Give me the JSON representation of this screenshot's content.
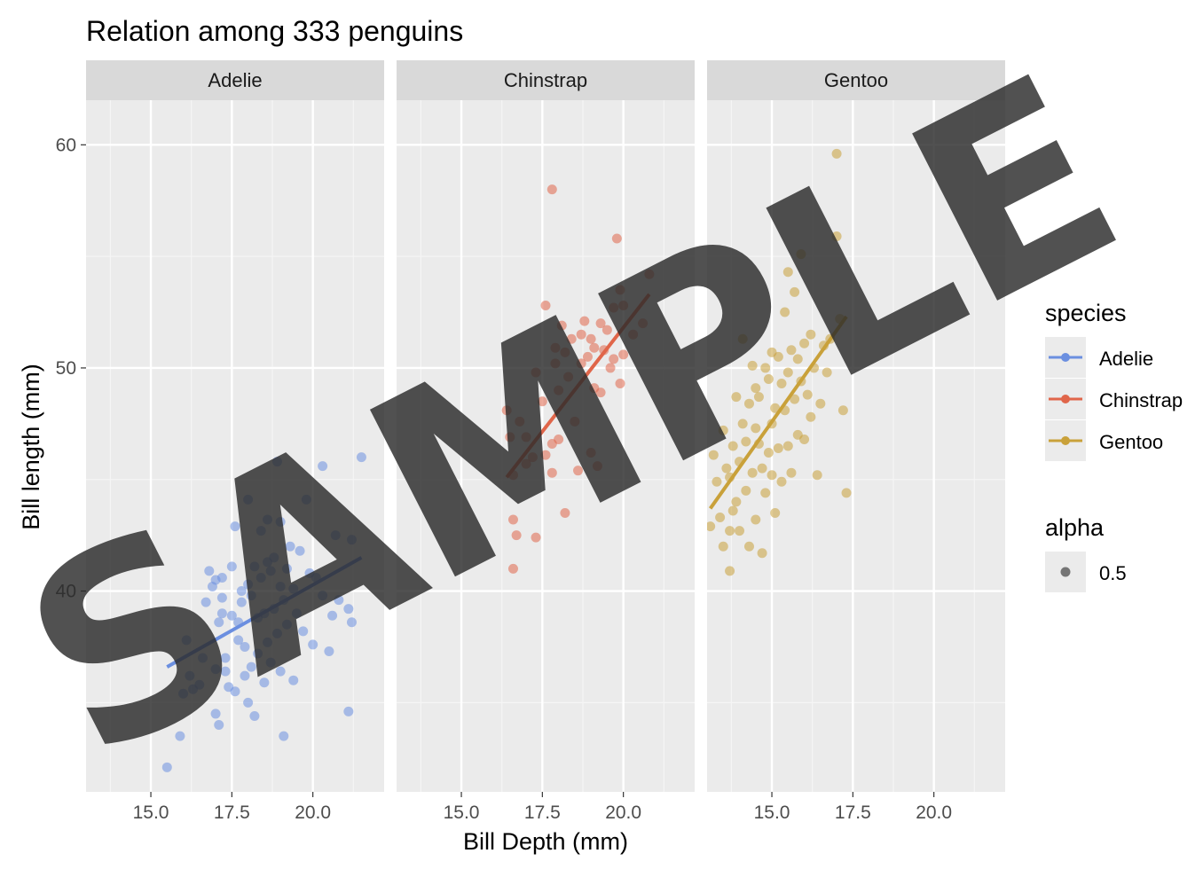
{
  "chart_data": {
    "type": "scatter",
    "title": "Relation among 333 penguins",
    "xlabel": "Bill Depth (mm)",
    "ylabel": "Bill length (mm)",
    "xlim": [
      13.0,
      22.2
    ],
    "ylim": [
      31.0,
      62.0
    ],
    "x_ticks": [
      15.0,
      17.5,
      20.0
    ],
    "x_tick_labels": [
      "15.0",
      "17.5",
      "20.0"
    ],
    "y_ticks": [
      40,
      50,
      60
    ],
    "y_tick_labels": [
      "40",
      "50",
      "60"
    ],
    "grid": true,
    "facets": [
      "Adelie",
      "Chinstrap",
      "Gentoo"
    ],
    "legend_position": "right",
    "watermark": "SAMPLE",
    "legends": [
      {
        "title": "species",
        "items": [
          {
            "label": "Adelie",
            "color": "#6b8fe0"
          },
          {
            "label": "Chinstrap",
            "color": "#e0664a"
          },
          {
            "label": "Gentoo",
            "color": "#c9a13a"
          }
        ]
      },
      {
        "title": "alpha",
        "items": [
          {
            "label": "0.5",
            "color": "#000000"
          }
        ]
      }
    ],
    "series": [
      {
        "name": "Adelie",
        "color": "#6b8fe0",
        "trend": {
          "x": [
            15.5,
            21.5
          ],
          "y": [
            36.6,
            41.5
          ]
        },
        "points": [
          [
            15.5,
            32.1
          ],
          [
            15.9,
            33.5
          ],
          [
            16.0,
            35.4
          ],
          [
            16.2,
            36.2
          ],
          [
            16.1,
            37.8
          ],
          [
            16.5,
            35.8
          ],
          [
            16.3,
            35.6
          ],
          [
            16.6,
            37.0
          ],
          [
            16.7,
            39.5
          ],
          [
            16.8,
            40.9
          ],
          [
            16.9,
            40.2
          ],
          [
            17.0,
            40.5
          ],
          [
            17.0,
            36.5
          ],
          [
            17.0,
            34.5
          ],
          [
            17.1,
            34.0
          ],
          [
            17.1,
            38.6
          ],
          [
            17.2,
            39.0
          ],
          [
            17.2,
            39.7
          ],
          [
            17.2,
            40.6
          ],
          [
            17.3,
            36.4
          ],
          [
            17.3,
            37.0
          ],
          [
            17.4,
            35.7
          ],
          [
            17.5,
            38.9
          ],
          [
            17.5,
            41.1
          ],
          [
            17.6,
            42.9
          ],
          [
            17.6,
            35.5
          ],
          [
            17.7,
            37.8
          ],
          [
            17.7,
            38.6
          ],
          [
            17.8,
            39.5
          ],
          [
            17.8,
            40.0
          ],
          [
            17.9,
            36.2
          ],
          [
            17.9,
            37.5
          ],
          [
            18.0,
            44.1
          ],
          [
            18.0,
            35.0
          ],
          [
            18.0,
            40.3
          ],
          [
            18.1,
            36.6
          ],
          [
            18.1,
            39.8
          ],
          [
            18.2,
            41.1
          ],
          [
            18.2,
            34.4
          ],
          [
            18.3,
            37.2
          ],
          [
            18.3,
            38.8
          ],
          [
            18.4,
            42.7
          ],
          [
            18.4,
            40.6
          ],
          [
            18.5,
            39.0
          ],
          [
            18.5,
            35.9
          ],
          [
            18.6,
            43.2
          ],
          [
            18.6,
            41.3
          ],
          [
            18.6,
            37.7
          ],
          [
            18.7,
            40.9
          ],
          [
            18.7,
            36.8
          ],
          [
            18.8,
            39.2
          ],
          [
            18.8,
            41.5
          ],
          [
            18.9,
            45.8
          ],
          [
            18.9,
            38.1
          ],
          [
            19.0,
            43.1
          ],
          [
            19.0,
            40.2
          ],
          [
            19.0,
            36.4
          ],
          [
            19.1,
            39.6
          ],
          [
            19.1,
            33.5
          ],
          [
            19.2,
            41.0
          ],
          [
            19.2,
            38.5
          ],
          [
            19.3,
            42.0
          ],
          [
            19.4,
            40.1
          ],
          [
            19.4,
            36.0
          ],
          [
            19.5,
            39.0
          ],
          [
            19.6,
            41.8
          ],
          [
            19.7,
            38.2
          ],
          [
            19.8,
            44.1
          ],
          [
            19.9,
            40.8
          ],
          [
            20.0,
            37.6
          ],
          [
            20.1,
            40.6
          ],
          [
            20.3,
            45.6
          ],
          [
            20.3,
            39.8
          ],
          [
            20.5,
            37.3
          ],
          [
            20.6,
            38.9
          ],
          [
            20.7,
            42.5
          ],
          [
            20.8,
            39.6
          ],
          [
            21.1,
            34.6
          ],
          [
            21.1,
            39.2
          ],
          [
            21.2,
            42.3
          ],
          [
            21.2,
            38.6
          ],
          [
            21.5,
            46.0
          ]
        ]
      },
      {
        "name": "Chinstrap",
        "color": "#e0664a",
        "trend": {
          "x": [
            16.4,
            20.8
          ],
          "y": [
            45.1,
            53.3
          ]
        },
        "points": [
          [
            16.4,
            48.1
          ],
          [
            16.5,
            46.9
          ],
          [
            16.6,
            45.2
          ],
          [
            16.6,
            43.2
          ],
          [
            16.6,
            41.0
          ],
          [
            16.7,
            42.5
          ],
          [
            16.8,
            47.6
          ],
          [
            17.0,
            45.7
          ],
          [
            17.0,
            46.9
          ],
          [
            17.2,
            46.0
          ],
          [
            17.3,
            42.4
          ],
          [
            17.3,
            49.8
          ],
          [
            17.5,
            48.5
          ],
          [
            17.6,
            46.1
          ],
          [
            17.6,
            52.8
          ],
          [
            17.8,
            45.3
          ],
          [
            17.8,
            46.6
          ],
          [
            17.8,
            58.0
          ],
          [
            17.9,
            50.9
          ],
          [
            17.9,
            50.2
          ],
          [
            18.0,
            46.8
          ],
          [
            18.0,
            49.0
          ],
          [
            18.1,
            51.9
          ],
          [
            18.2,
            50.7
          ],
          [
            18.2,
            43.5
          ],
          [
            18.3,
            49.6
          ],
          [
            18.4,
            51.3
          ],
          [
            18.5,
            47.6
          ],
          [
            18.6,
            45.4
          ],
          [
            18.7,
            50.2
          ],
          [
            18.7,
            51.5
          ],
          [
            18.8,
            52.1
          ],
          [
            18.9,
            50.5
          ],
          [
            19.0,
            51.3
          ],
          [
            19.0,
            46.2
          ],
          [
            19.1,
            50.9
          ],
          [
            19.1,
            49.1
          ],
          [
            19.2,
            45.6
          ],
          [
            19.3,
            52.0
          ],
          [
            19.3,
            48.9
          ],
          [
            19.4,
            50.8
          ],
          [
            19.5,
            51.7
          ],
          [
            19.6,
            50.0
          ],
          [
            19.7,
            50.4
          ],
          [
            19.7,
            52.7
          ],
          [
            19.8,
            55.8
          ],
          [
            19.9,
            49.3
          ],
          [
            19.9,
            53.5
          ],
          [
            20.0,
            50.6
          ],
          [
            20.0,
            52.8
          ],
          [
            20.3,
            51.5
          ],
          [
            20.6,
            52.0
          ],
          [
            20.8,
            54.2
          ]
        ]
      },
      {
        "name": "Gentoo",
        "color": "#c9a13a",
        "trend": {
          "x": [
            13.1,
            17.3
          ],
          "y": [
            43.7,
            52.3
          ]
        },
        "points": [
          [
            13.1,
            42.9
          ],
          [
            13.2,
            46.1
          ],
          [
            13.3,
            44.9
          ],
          [
            13.4,
            43.3
          ],
          [
            13.5,
            42.0
          ],
          [
            13.5,
            47.2
          ],
          [
            13.6,
            45.5
          ],
          [
            13.7,
            40.9
          ],
          [
            13.7,
            42.7
          ],
          [
            13.7,
            45.1
          ],
          [
            13.8,
            46.5
          ],
          [
            13.8,
            43.6
          ],
          [
            13.9,
            44.0
          ],
          [
            13.9,
            48.7
          ],
          [
            14.0,
            42.7
          ],
          [
            14.0,
            45.8
          ],
          [
            14.1,
            47.5
          ],
          [
            14.1,
            51.3
          ],
          [
            14.2,
            46.7
          ],
          [
            14.2,
            44.5
          ],
          [
            14.3,
            48.4
          ],
          [
            14.3,
            42.0
          ],
          [
            14.4,
            50.1
          ],
          [
            14.4,
            45.3
          ],
          [
            14.5,
            47.3
          ],
          [
            14.5,
            49.1
          ],
          [
            14.5,
            43.2
          ],
          [
            14.6,
            46.6
          ],
          [
            14.6,
            48.7
          ],
          [
            14.7,
            41.7
          ],
          [
            14.7,
            45.5
          ],
          [
            14.8,
            50.0
          ],
          [
            14.8,
            44.4
          ],
          [
            14.9,
            46.2
          ],
          [
            14.9,
            49.5
          ],
          [
            15.0,
            50.7
          ],
          [
            15.0,
            45.2
          ],
          [
            15.0,
            47.5
          ],
          [
            15.1,
            48.2
          ],
          [
            15.1,
            43.5
          ],
          [
            15.2,
            50.5
          ],
          [
            15.2,
            46.4
          ],
          [
            15.3,
            49.3
          ],
          [
            15.3,
            44.9
          ],
          [
            15.4,
            48.1
          ],
          [
            15.4,
            52.5
          ],
          [
            15.5,
            46.5
          ],
          [
            15.5,
            49.8
          ],
          [
            15.5,
            54.3
          ],
          [
            15.6,
            50.8
          ],
          [
            15.6,
            45.3
          ],
          [
            15.7,
            48.6
          ],
          [
            15.7,
            53.4
          ],
          [
            15.8,
            47.0
          ],
          [
            15.8,
            50.4
          ],
          [
            15.9,
            49.4
          ],
          [
            15.9,
            55.1
          ],
          [
            16.0,
            46.8
          ],
          [
            16.0,
            51.1
          ],
          [
            16.1,
            48.8
          ],
          [
            16.2,
            47.8
          ],
          [
            16.2,
            51.5
          ],
          [
            16.3,
            50.0
          ],
          [
            16.4,
            45.2
          ],
          [
            16.5,
            48.4
          ],
          [
            16.6,
            51.0
          ],
          [
            16.7,
            49.8
          ],
          [
            16.8,
            51.3
          ],
          [
            17.0,
            55.9
          ],
          [
            17.0,
            59.6
          ],
          [
            17.1,
            52.2
          ],
          [
            17.2,
            48.1
          ],
          [
            17.3,
            44.4
          ]
        ]
      }
    ]
  }
}
